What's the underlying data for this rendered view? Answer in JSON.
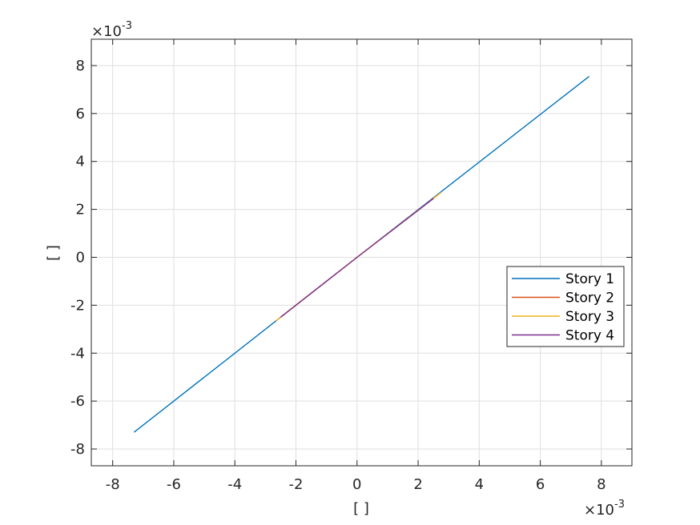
{
  "chart_data": {
    "type": "line",
    "title": "",
    "xlabel": "[ ]",
    "ylabel": "[ ]",
    "x_exponent": {
      "times": "×",
      "base": "10",
      "power": "-3"
    },
    "y_exponent": {
      "times": "×",
      "base": "10",
      "power": "-3"
    },
    "xlim": [
      -8.7,
      9.0
    ],
    "ylim": [
      -8.7,
      9.1
    ],
    "xticks": [
      -8,
      -6,
      -4,
      -2,
      0,
      2,
      4,
      6,
      8
    ],
    "yticks": [
      -8,
      -6,
      -4,
      -2,
      0,
      2,
      4,
      6,
      8
    ],
    "xtick_labels": [
      "-8",
      "-6",
      "-4",
      "-2",
      "0",
      "2",
      "4",
      "6",
      "8"
    ],
    "ytick_labels": [
      "-8",
      "-6",
      "-4",
      "-2",
      "0",
      "2",
      "4",
      "6",
      "8"
    ],
    "grid": true,
    "legend_position": "right",
    "series": [
      {
        "name": "Story 1",
        "color": "#0072BD",
        "x": [
          -7.3,
          0,
          7.6
        ],
        "y": [
          -7.3,
          0,
          7.55
        ]
      },
      {
        "name": "Story 2",
        "color": "#D95319",
        "x": [
          -2.6,
          0,
          2.6
        ],
        "y": [
          -2.6,
          0,
          2.55
        ]
      },
      {
        "name": "Story 3",
        "color": "#EDB120",
        "x": [
          -2.65,
          0,
          2.75
        ],
        "y": [
          -2.65,
          0,
          2.7
        ]
      },
      {
        "name": "Story 4",
        "color": "#7E2F8E",
        "x": [
          -2.5,
          0,
          2.5
        ],
        "y": [
          -2.5,
          0,
          2.45
        ]
      }
    ]
  }
}
